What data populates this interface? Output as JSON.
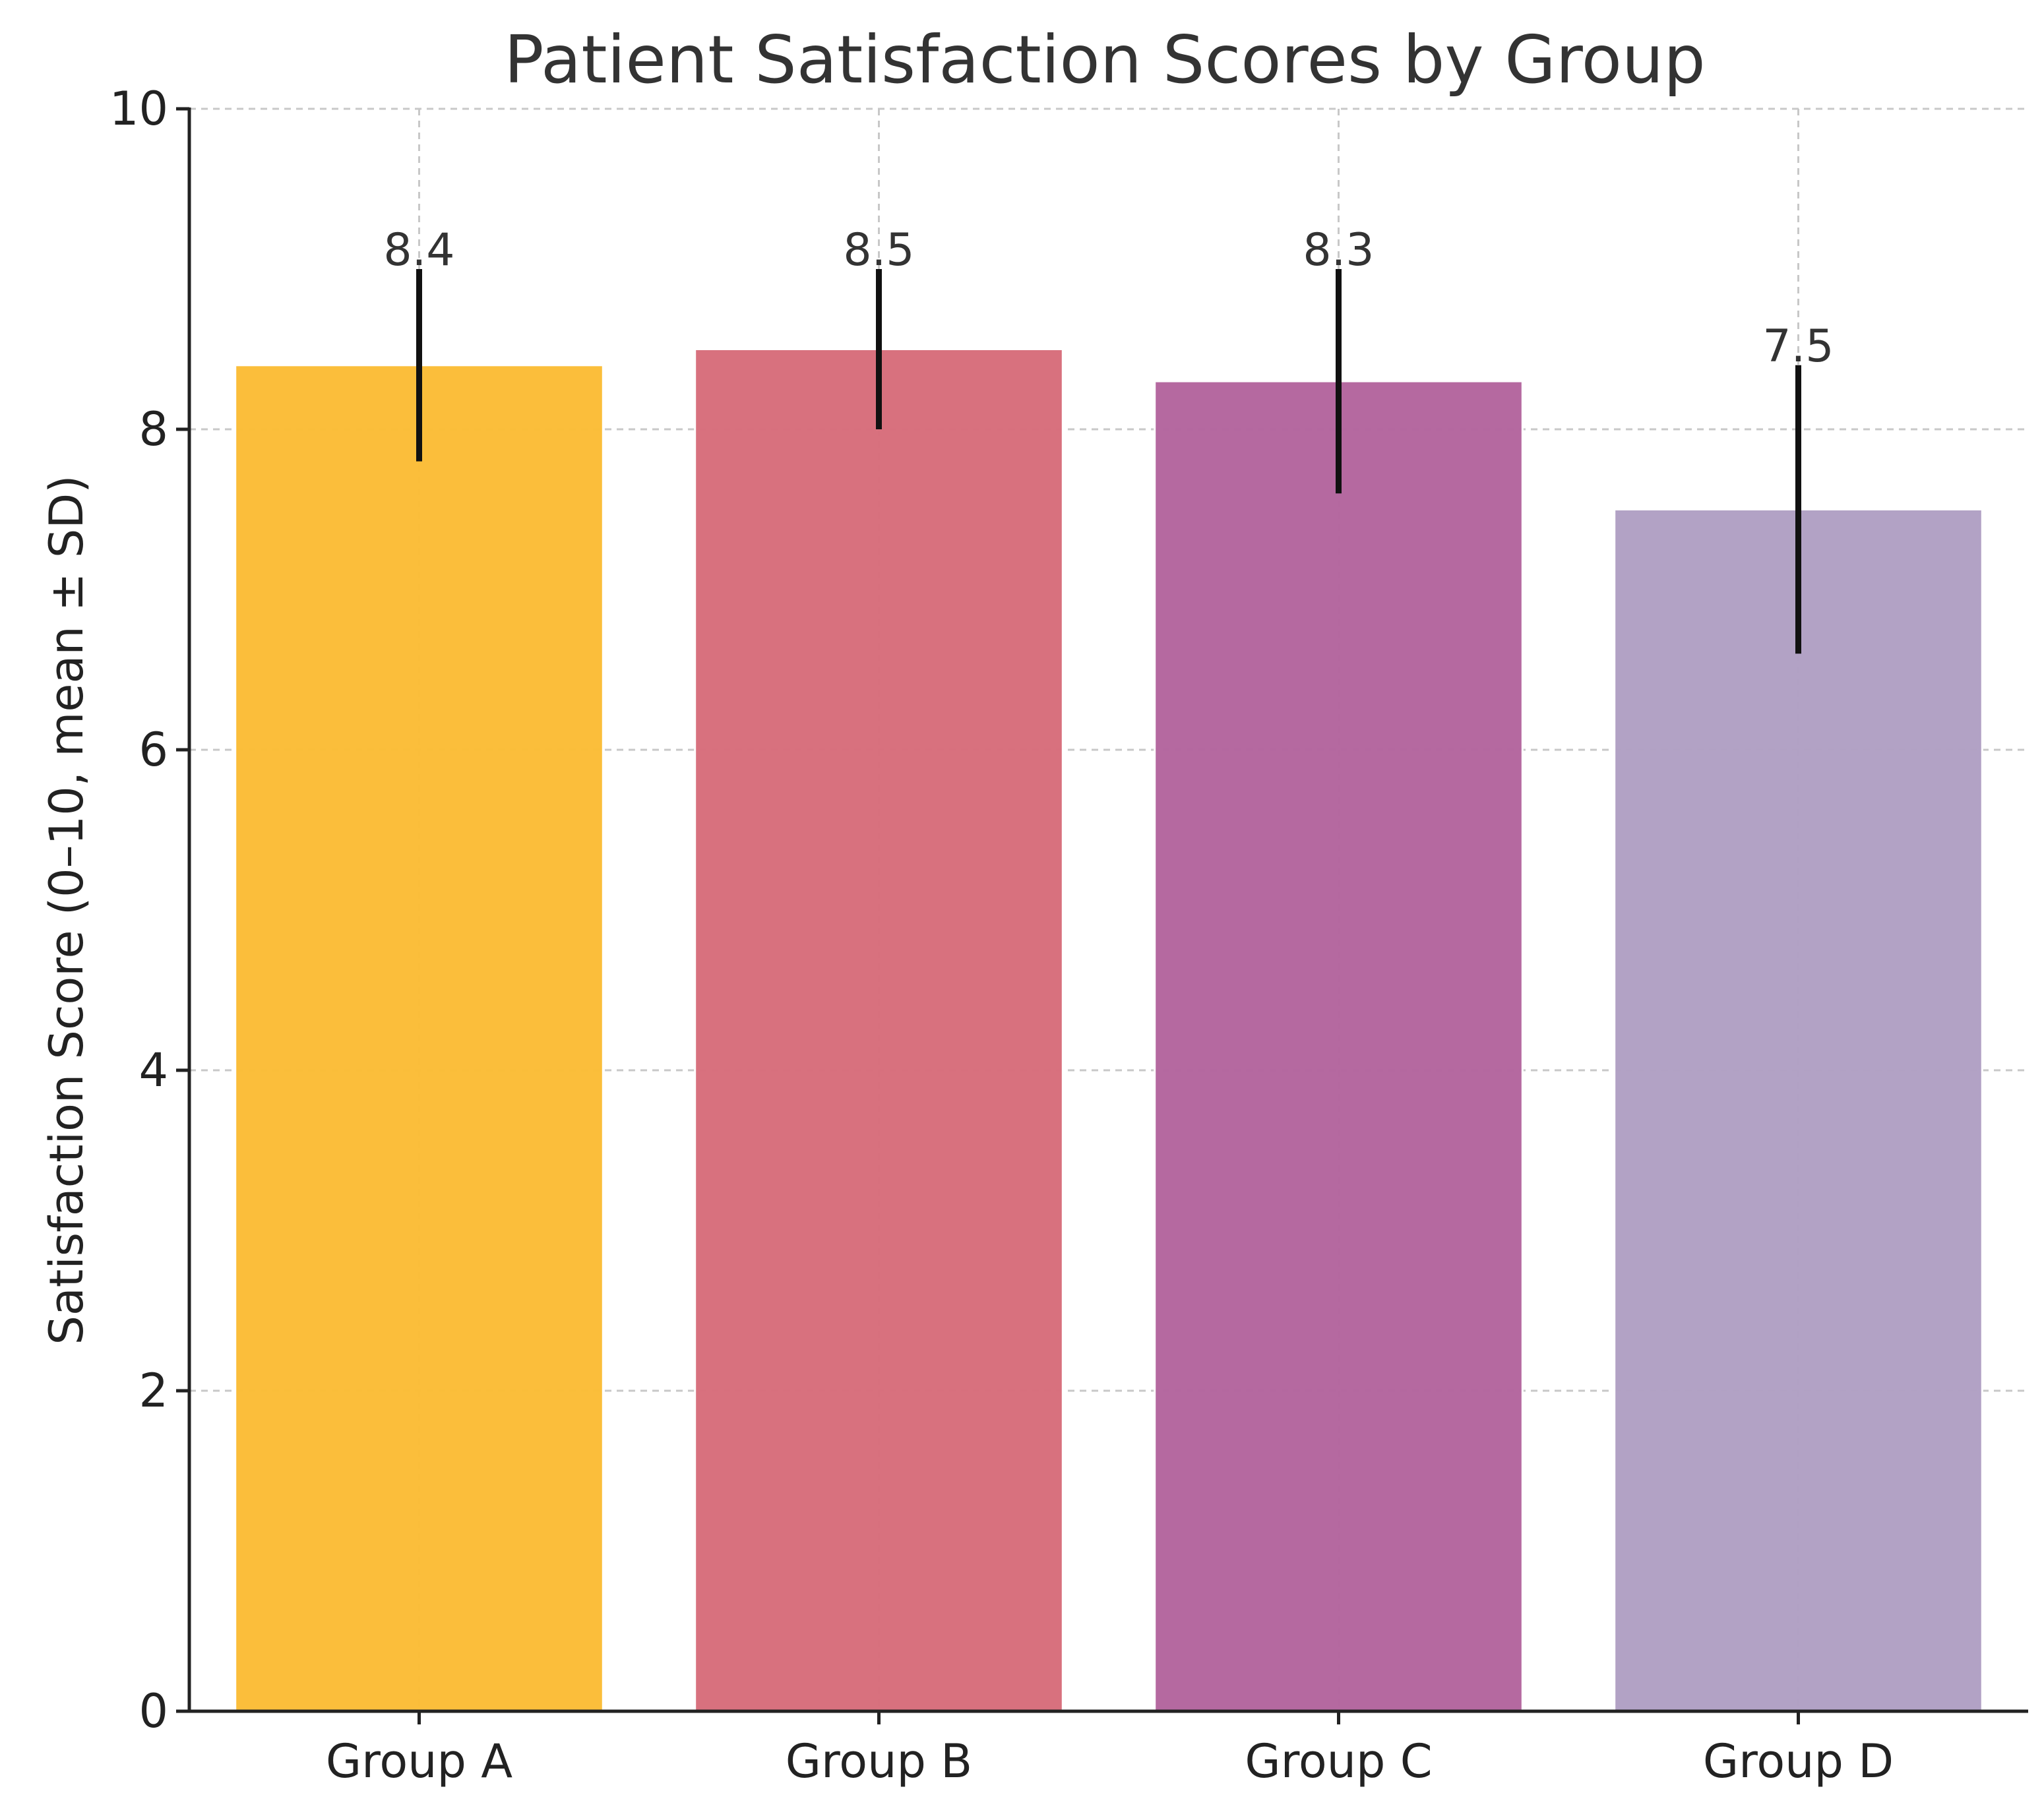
{
  "chart_data": {
    "type": "bar",
    "title": "Patient Satisfaction Scores by Group",
    "xlabel": "",
    "ylabel": "Satisfaction Score (0–10, mean ± SD)",
    "categories": [
      "Group A",
      "Group B",
      "Group C",
      "Group D"
    ],
    "values": [
      8.4,
      8.5,
      8.3,
      7.5
    ],
    "errors": [
      0.6,
      0.5,
      0.7,
      0.9
    ],
    "value_labels": [
      "8.4",
      "8.5",
      "8.3",
      "7.5"
    ],
    "colors": [
      "#fbbc35",
      "#d76c7a",
      "#b3649d",
      "#af9fc3"
    ],
    "ylim": [
      0,
      10
    ],
    "yticks": [
      0,
      2,
      4,
      6,
      8,
      10
    ],
    "grid": true
  }
}
